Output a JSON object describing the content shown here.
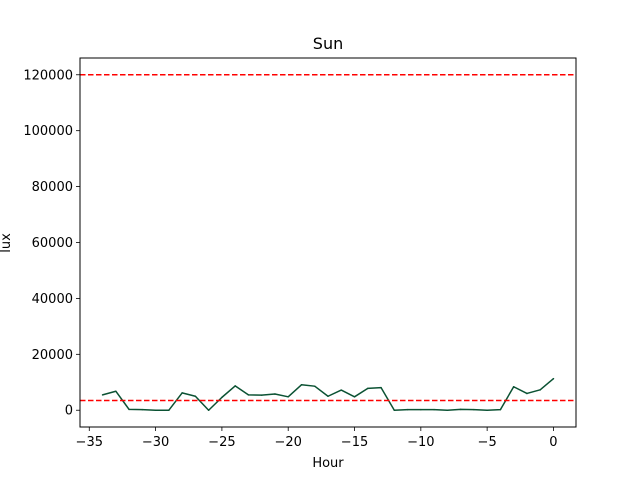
{
  "chart_data": {
    "type": "line",
    "title": "Sun",
    "xlabel": "Hour",
    "ylabel": "lux",
    "xlim": [
      -35.7,
      1.7
    ],
    "ylim": [
      -6000,
      126000
    ],
    "xticks": [
      -35,
      -30,
      -25,
      -20,
      -15,
      -10,
      -5,
      0
    ],
    "xtick_labels": [
      "−35",
      "−30",
      "−25",
      "−20",
      "−15",
      "−10",
      "−5",
      "0"
    ],
    "yticks": [
      0,
      20000,
      40000,
      60000,
      80000,
      100000,
      120000
    ],
    "ytick_labels": [
      "0",
      "20000",
      "40000",
      "60000",
      "80000",
      "100000",
      "120000"
    ],
    "grid": false,
    "series": [
      {
        "color": "#0b5233",
        "x": [
          -34,
          -33,
          -32,
          -31,
          -30,
          -29,
          -28,
          -27,
          -26,
          -25,
          -24,
          -23,
          -22,
          -21,
          -20,
          -19,
          -18,
          -17,
          -16,
          -15,
          -14,
          -13,
          -12,
          -11,
          -10,
          -9,
          -8,
          -7,
          -6,
          -5,
          -4,
          -3,
          -2,
          -1,
          0
        ],
        "values": [
          5500,
          6800,
          300,
          200,
          0,
          0,
          6200,
          5000,
          0,
          4600,
          8700,
          5500,
          5400,
          5800,
          4800,
          9100,
          8600,
          5000,
          7200,
          4800,
          7800,
          8100,
          0,
          200,
          200,
          200,
          0,
          300,
          200,
          0,
          200,
          8400,
          6000,
          7300,
          11300
        ]
      }
    ],
    "reference_lines": [
      {
        "y": 120000,
        "color": "#ff0000",
        "style": "dashed"
      },
      {
        "y": 3500,
        "color": "#ff0000",
        "style": "dashed"
      }
    ]
  }
}
